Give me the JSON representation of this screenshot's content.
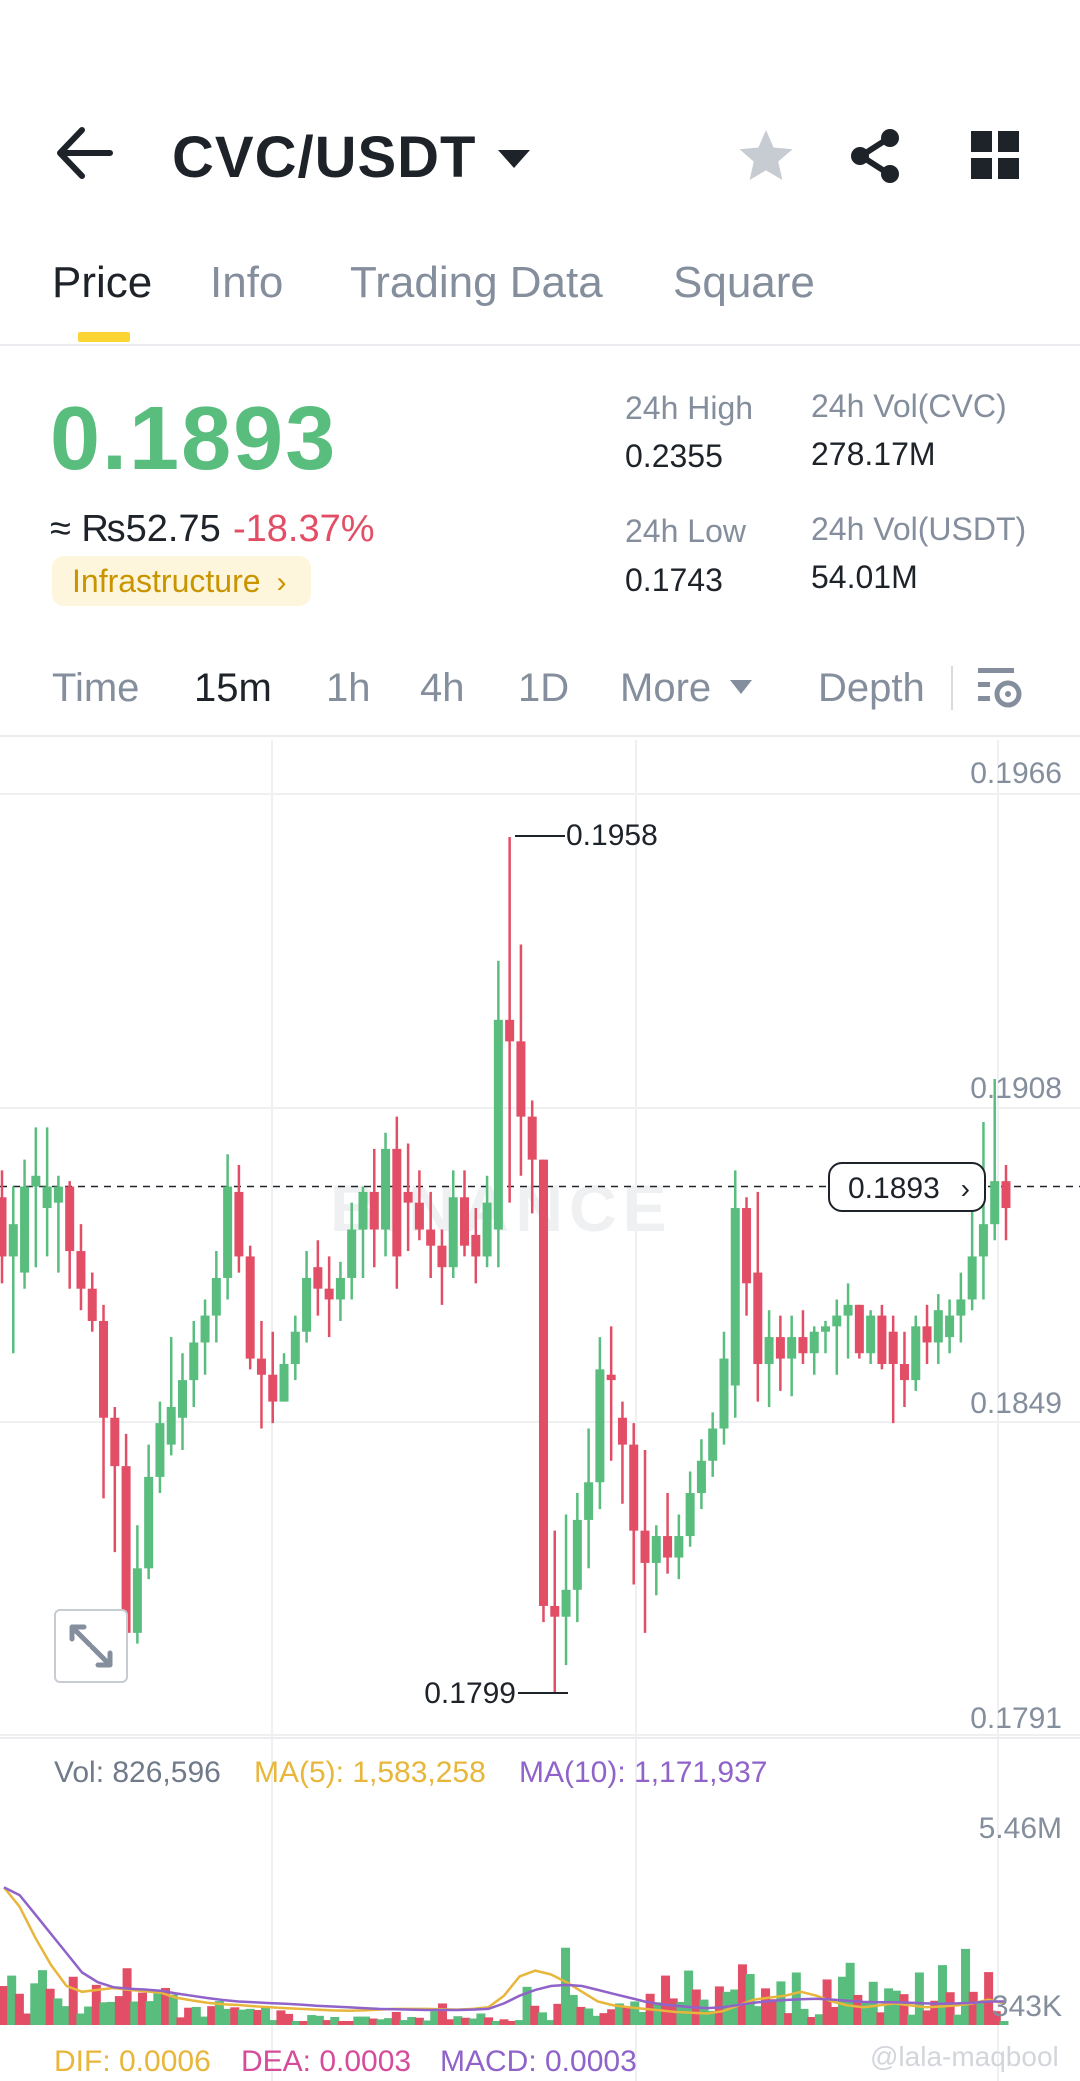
{
  "header": {
    "pair": "CVC/USDT",
    "icons": [
      "back-arrow-icon",
      "caret-down-icon",
      "star-icon",
      "share-icon",
      "grid-icon"
    ]
  },
  "tabs": [
    {
      "label": "Price",
      "active": true
    },
    {
      "label": "Info",
      "active": false
    },
    {
      "label": "Trading Data",
      "active": false
    },
    {
      "label": "Square",
      "active": false
    }
  ],
  "ticker": {
    "last_price": "0.1893",
    "fiat": "≈ ₨52.75",
    "change": "-18.37%",
    "tag": "Infrastructure",
    "stats": {
      "high_label": "24h High",
      "high": "0.2355",
      "low_label": "24h Low",
      "low": "0.1743",
      "vol_base_label": "24h Vol(CVC)",
      "vol_base": "278.17M",
      "vol_quote_label": "24h Vol(USDT)",
      "vol_quote": "54.01M"
    },
    "colors": {
      "up": "#58bd7d",
      "down": "#e24e66",
      "accent": "#fcd535"
    }
  },
  "intervals": {
    "items": [
      {
        "label": "Time",
        "active": false
      },
      {
        "label": "15m",
        "active": true
      },
      {
        "label": "1h",
        "active": false
      },
      {
        "label": "4h",
        "active": false
      },
      {
        "label": "1D",
        "active": false
      },
      {
        "label": "More",
        "active": false
      }
    ],
    "depth": "Depth"
  },
  "chart_data": {
    "type": "candlestick",
    "y_ticks": [
      "0.1966",
      "0.1908",
      "0.1849",
      "0.1791"
    ],
    "ylim": [
      0.1791,
      0.1966
    ],
    "current_price": "0.1893",
    "max_marker": "0.1958",
    "min_marker": "0.1799",
    "watermark": "BINANCE",
    "candles": [
      {
        "o": 0.1891,
        "h": 0.1896,
        "l": 0.1875,
        "c": 0.188
      },
      {
        "o": 0.188,
        "h": 0.1893,
        "l": 0.1862,
        "c": 0.1886
      },
      {
        "o": 0.1877,
        "h": 0.1898,
        "l": 0.1874,
        "c": 0.1893
      },
      {
        "o": 0.1893,
        "h": 0.1904,
        "l": 0.1878,
        "c": 0.1895
      },
      {
        "o": 0.1889,
        "h": 0.1904,
        "l": 0.188,
        "c": 0.1893
      },
      {
        "o": 0.189,
        "h": 0.1895,
        "l": 0.1877,
        "c": 0.1893
      },
      {
        "o": 0.1893,
        "h": 0.1894,
        "l": 0.1874,
        "c": 0.1881
      },
      {
        "o": 0.1881,
        "h": 0.1886,
        "l": 0.187,
        "c": 0.1874
      },
      {
        "o": 0.1874,
        "h": 0.1877,
        "l": 0.1866,
        "c": 0.1868
      },
      {
        "o": 0.1868,
        "h": 0.1871,
        "l": 0.1835,
        "c": 0.185
      },
      {
        "o": 0.185,
        "h": 0.1852,
        "l": 0.1825,
        "c": 0.1841
      },
      {
        "o": 0.1841,
        "h": 0.1847,
        "l": 0.1806,
        "c": 0.181
      },
      {
        "o": 0.181,
        "h": 0.183,
        "l": 0.1808,
        "c": 0.1822
      },
      {
        "o": 0.1822,
        "h": 0.1845,
        "l": 0.182,
        "c": 0.1839
      },
      {
        "o": 0.1839,
        "h": 0.1853,
        "l": 0.1836,
        "c": 0.1849
      },
      {
        "o": 0.1845,
        "h": 0.1865,
        "l": 0.1843,
        "c": 0.1852
      },
      {
        "o": 0.185,
        "h": 0.1862,
        "l": 0.1844,
        "c": 0.1857
      },
      {
        "o": 0.1857,
        "h": 0.1868,
        "l": 0.1852,
        "c": 0.1864
      },
      {
        "o": 0.1864,
        "h": 0.1872,
        "l": 0.1858,
        "c": 0.1869
      },
      {
        "o": 0.1869,
        "h": 0.1881,
        "l": 0.1864,
        "c": 0.1876
      },
      {
        "o": 0.1876,
        "h": 0.1899,
        "l": 0.1872,
        "c": 0.1893
      },
      {
        "o": 0.1892,
        "h": 0.1897,
        "l": 0.1877,
        "c": 0.188
      },
      {
        "o": 0.188,
        "h": 0.1882,
        "l": 0.1859,
        "c": 0.1861
      },
      {
        "o": 0.1861,
        "h": 0.1868,
        "l": 0.1848,
        "c": 0.1858
      },
      {
        "o": 0.1858,
        "h": 0.1866,
        "l": 0.1849,
        "c": 0.1853
      },
      {
        "o": 0.1853,
        "h": 0.1862,
        "l": 0.1853,
        "c": 0.186
      },
      {
        "o": 0.186,
        "h": 0.1869,
        "l": 0.1857,
        "c": 0.1866
      },
      {
        "o": 0.1866,
        "h": 0.1881,
        "l": 0.1864,
        "c": 0.1876
      },
      {
        "o": 0.1878,
        "h": 0.1883,
        "l": 0.1869,
        "c": 0.1874
      },
      {
        "o": 0.1874,
        "h": 0.188,
        "l": 0.1865,
        "c": 0.1872
      },
      {
        "o": 0.1872,
        "h": 0.1879,
        "l": 0.1868,
        "c": 0.1876
      },
      {
        "o": 0.1876,
        "h": 0.189,
        "l": 0.1872,
        "c": 0.1885
      },
      {
        "o": 0.1885,
        "h": 0.1893,
        "l": 0.1876,
        "c": 0.1892
      },
      {
        "o": 0.1892,
        "h": 0.19,
        "l": 0.1878,
        "c": 0.1885
      },
      {
        "o": 0.1885,
        "h": 0.1903,
        "l": 0.188,
        "c": 0.19
      },
      {
        "o": 0.19,
        "h": 0.1906,
        "l": 0.1874,
        "c": 0.188
      },
      {
        "o": 0.1892,
        "h": 0.1901,
        "l": 0.1881,
        "c": 0.189
      },
      {
        "o": 0.189,
        "h": 0.1896,
        "l": 0.1883,
        "c": 0.1885
      },
      {
        "o": 0.1885,
        "h": 0.1892,
        "l": 0.1876,
        "c": 0.1882
      },
      {
        "o": 0.1882,
        "h": 0.1885,
        "l": 0.1871,
        "c": 0.1878
      },
      {
        "o": 0.1878,
        "h": 0.1896,
        "l": 0.1876,
        "c": 0.1891
      },
      {
        "o": 0.1891,
        "h": 0.1896,
        "l": 0.188,
        "c": 0.1882
      },
      {
        "o": 0.1884,
        "h": 0.1889,
        "l": 0.1875,
        "c": 0.188
      },
      {
        "o": 0.188,
        "h": 0.1895,
        "l": 0.1878,
        "c": 0.189
      },
      {
        "o": 0.1885,
        "h": 0.1935,
        "l": 0.1878,
        "c": 0.1924
      },
      {
        "o": 0.1924,
        "h": 0.1958,
        "l": 0.189,
        "c": 0.192
      },
      {
        "o": 0.192,
        "h": 0.1938,
        "l": 0.1895,
        "c": 0.1906
      },
      {
        "o": 0.1906,
        "h": 0.1909,
        "l": 0.1888,
        "c": 0.1898
      },
      {
        "o": 0.1898,
        "h": 0.1898,
        "l": 0.1812,
        "c": 0.1815
      },
      {
        "o": 0.1815,
        "h": 0.1829,
        "l": 0.1799,
        "c": 0.1813
      },
      {
        "o": 0.1813,
        "h": 0.1832,
        "l": 0.1804,
        "c": 0.1818
      },
      {
        "o": 0.1818,
        "h": 0.1836,
        "l": 0.1812,
        "c": 0.1831
      },
      {
        "o": 0.1831,
        "h": 0.1848,
        "l": 0.1822,
        "c": 0.1838
      },
      {
        "o": 0.1838,
        "h": 0.1865,
        "l": 0.1833,
        "c": 0.1859
      },
      {
        "o": 0.1858,
        "h": 0.1867,
        "l": 0.1842,
        "c": 0.1857
      },
      {
        "o": 0.185,
        "h": 0.1853,
        "l": 0.1834,
        "c": 0.1845
      },
      {
        "o": 0.1845,
        "h": 0.1849,
        "l": 0.1819,
        "c": 0.1829
      },
      {
        "o": 0.1829,
        "h": 0.1844,
        "l": 0.181,
        "c": 0.1823
      },
      {
        "o": 0.1823,
        "h": 0.183,
        "l": 0.1817,
        "c": 0.1828
      },
      {
        "o": 0.1828,
        "h": 0.1836,
        "l": 0.1821,
        "c": 0.1824
      },
      {
        "o": 0.1824,
        "h": 0.1832,
        "l": 0.182,
        "c": 0.1828
      },
      {
        "o": 0.1828,
        "h": 0.184,
        "l": 0.1826,
        "c": 0.1836
      },
      {
        "o": 0.1836,
        "h": 0.1846,
        "l": 0.1833,
        "c": 0.1842
      },
      {
        "o": 0.1842,
        "h": 0.1851,
        "l": 0.1839,
        "c": 0.1848
      },
      {
        "o": 0.1848,
        "h": 0.1866,
        "l": 0.1845,
        "c": 0.1861
      },
      {
        "o": 0.1856,
        "h": 0.1896,
        "l": 0.185,
        "c": 0.1889
      },
      {
        "o": 0.1889,
        "h": 0.1891,
        "l": 0.1869,
        "c": 0.1875
      },
      {
        "o": 0.1877,
        "h": 0.1892,
        "l": 0.1853,
        "c": 0.186
      },
      {
        "o": 0.186,
        "h": 0.187,
        "l": 0.1852,
        "c": 0.1865
      },
      {
        "o": 0.1865,
        "h": 0.1869,
        "l": 0.1855,
        "c": 0.1861
      },
      {
        "o": 0.1861,
        "h": 0.1869,
        "l": 0.1854,
        "c": 0.1865
      },
      {
        "o": 0.1865,
        "h": 0.187,
        "l": 0.186,
        "c": 0.1862
      },
      {
        "o": 0.1862,
        "h": 0.1867,
        "l": 0.1858,
        "c": 0.1866
      },
      {
        "o": 0.1866,
        "h": 0.1868,
        "l": 0.1862,
        "c": 0.1867
      },
      {
        "o": 0.1867,
        "h": 0.1872,
        "l": 0.1858,
        "c": 0.1869
      },
      {
        "o": 0.1869,
        "h": 0.1875,
        "l": 0.1861,
        "c": 0.1871
      },
      {
        "o": 0.1871,
        "h": 0.1871,
        "l": 0.1861,
        "c": 0.1862
      },
      {
        "o": 0.1862,
        "h": 0.187,
        "l": 0.186,
        "c": 0.1869
      },
      {
        "o": 0.1869,
        "h": 0.1871,
        "l": 0.1859,
        "c": 0.186
      },
      {
        "o": 0.1866,
        "h": 0.1869,
        "l": 0.1849,
        "c": 0.186
      },
      {
        "o": 0.186,
        "h": 0.1866,
        "l": 0.1852,
        "c": 0.1857
      },
      {
        "o": 0.1857,
        "h": 0.1869,
        "l": 0.1855,
        "c": 0.1867
      },
      {
        "o": 0.1867,
        "h": 0.1871,
        "l": 0.186,
        "c": 0.1864
      },
      {
        "o": 0.1864,
        "h": 0.1873,
        "l": 0.186,
        "c": 0.187
      },
      {
        "o": 0.1865,
        "h": 0.1872,
        "l": 0.1862,
        "c": 0.1869
      },
      {
        "o": 0.1869,
        "h": 0.1877,
        "l": 0.1864,
        "c": 0.1872
      },
      {
        "o": 0.1872,
        "h": 0.189,
        "l": 0.187,
        "c": 0.188
      },
      {
        "o": 0.188,
        "h": 0.1905,
        "l": 0.1872,
        "c": 0.1886
      },
      {
        "o": 0.1886,
        "h": 0.1913,
        "l": 0.1883,
        "c": 0.1894
      },
      {
        "o": 0.1894,
        "h": 0.1897,
        "l": 0.1883,
        "c": 0.1889
      }
    ],
    "volume": {
      "label": "Vol: 826,596",
      "ma5_label": "MA(5): 1,583,258",
      "ma10_label": "MA(10): 1,171,937",
      "y_ticks": [
        "5.46M",
        "343K"
      ],
      "ylim": [
        0.343,
        5.46
      ],
      "values_m": [
        1.35,
        1.62,
        1.15,
        0.64,
        1.42,
        1.76,
        1.28,
        1.03,
        0.83,
        1.59,
        0.64,
        0.82,
        1.38,
        0.93,
        0.94,
        1.09,
        1.81,
        0.95,
        1.18,
        0.96,
        1.17,
        1.3,
        1.13,
        0.54,
        0.79,
        0.81,
        0.56,
        0.83,
        0.96,
        0.76,
        0.8,
        0.74,
        0.76,
        0.73,
        0.8,
        0.47,
        0.72,
        0.63,
        0.41,
        0.44,
        0.6,
        0.58,
        0.47,
        0.55,
        0.41,
        0.4,
        0.56,
        0.56,
        0.51,
        0.49,
        0.52,
        0.68,
        0.47,
        0.55,
        0.53,
        0.46,
        0.7,
        0.9,
        0.49,
        0.57,
        0.53,
        0.51,
        0.64,
        0.54,
        0.41,
        0.49,
        0.39,
        0.47,
        1.33,
        0.84,
        0.67,
        0.47,
        0.89,
        2.34,
        1.12,
        0.81,
        0.77,
        0.58,
        0.65,
        0.75,
        0.9,
        0.8,
        0.95,
        0.68,
        1.15,
        0.93,
        1.62,
        1.03,
        0.94,
        1.75,
        1.26,
        1.0,
        0.71,
        1.34,
        1.2,
        1.26,
        1.91,
        1.66,
        0.83,
        1.29,
        1.01,
        1.47,
        0.65,
        1.7,
        0.76,
        0.55,
        0.62,
        1.52,
        0.81,
        1.59,
        1.95,
        1.12,
        0.95,
        1.46,
        0.67,
        1.29,
        1.23,
        1.14,
        0.61,
        1.7,
        0.72,
        0.97,
        1.89,
        1.19,
        0.61,
        2.31,
        1.2,
        0.96,
        1.71,
        0.7,
        0.39
      ],
      "ma5_m": [
        3.9,
        3.4,
        2.6,
        1.9,
        1.35,
        1.2,
        1.25,
        1.3,
        1.25,
        1.22,
        1.18,
        1.05,
        0.98,
        0.92,
        0.88,
        0.86,
        0.83,
        0.8,
        0.78,
        0.76,
        0.74,
        0.72,
        0.71,
        0.72,
        0.74,
        0.76,
        0.76,
        0.76,
        0.75,
        0.74,
        0.76,
        0.8,
        1.1,
        1.6,
        1.75,
        1.65,
        1.45,
        1.2,
        0.95,
        0.85,
        0.8,
        0.76,
        0.72,
        0.68,
        0.66,
        0.64,
        0.7,
        0.85,
        1.0,
        1.05,
        1.1,
        1.2,
        1.1,
        0.95,
        0.85,
        0.8,
        0.85,
        0.9,
        0.85,
        0.8,
        0.82,
        0.85,
        0.9,
        1.0,
        0.9
      ],
      "ma10_m": [
        3.9,
        3.7,
        3.2,
        2.7,
        2.2,
        1.7,
        1.45,
        1.32,
        1.28,
        1.26,
        1.23,
        1.16,
        1.1,
        1.04,
        0.99,
        0.95,
        0.93,
        0.91,
        0.89,
        0.87,
        0.84,
        0.82,
        0.8,
        0.78,
        0.76,
        0.75,
        0.74,
        0.73,
        0.73,
        0.73,
        0.74,
        0.76,
        0.9,
        1.1,
        1.25,
        1.35,
        1.38,
        1.35,
        1.25,
        1.15,
        1.05,
        0.95,
        0.88,
        0.84,
        0.8,
        0.78,
        0.8,
        0.86,
        0.92,
        0.96,
        0.99,
        1.01,
        1.02,
        1.0,
        0.97,
        0.94,
        0.93,
        0.93,
        0.92,
        0.9,
        0.89,
        0.9,
        0.92,
        0.95,
        0.95
      ]
    },
    "macd": {
      "dif_label": "DIF: 0.0006",
      "dea_label": "DEA: 0.0003",
      "macd_label": "MACD: 0.0003"
    },
    "colors": {
      "up": "#58bd7d",
      "down": "#e24e66",
      "ma5": "#e8b63a",
      "ma10": "#8f63c9",
      "dif": "#e8b63a",
      "dea": "#d54c9b",
      "macd": "#8f63c9"
    }
  },
  "overlay": {
    "watermark": "@lala-maqbool"
  }
}
